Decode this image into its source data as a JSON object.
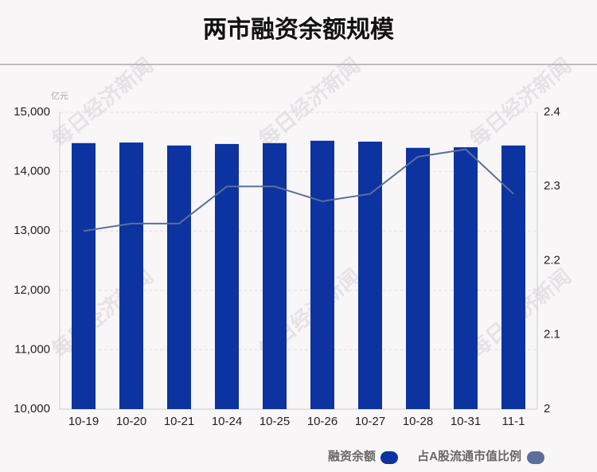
{
  "chart_data": {
    "type": "bar_line",
    "title": "两市融资余额规模",
    "y_unit": "亿元",
    "watermark": "每日经济新闻",
    "categories": [
      "10-19",
      "10-20",
      "10-21",
      "10-24",
      "10-25",
      "10-26",
      "10-27",
      "10-28",
      "10-31",
      "11-1"
    ],
    "series": [
      {
        "name": "融资余额",
        "color": "#0c33a0",
        "type": "bar",
        "values": [
          14480,
          14490,
          14440,
          14465,
          14480,
          14520,
          14505,
          14400,
          14410,
          14440
        ]
      },
      {
        "name": "占A股流通市值比例",
        "color": "#5b6f9c",
        "type": "line",
        "axis": "y2",
        "values": [
          2.24,
          2.25,
          2.25,
          2.3,
          2.3,
          2.28,
          2.29,
          2.34,
          2.35,
          2.29
        ]
      }
    ],
    "ylim": [
      10000,
      15000
    ],
    "yticks": [
      {
        "value": 10000,
        "label": "10,000"
      },
      {
        "value": 11000,
        "label": "11,000"
      },
      {
        "value": 12000,
        "label": "12,000"
      },
      {
        "value": 13000,
        "label": "13,000"
      },
      {
        "value": 14000,
        "label": "14,000"
      },
      {
        "value": 15000,
        "label": "15,000"
      }
    ],
    "y2lim": [
      2,
      2.4
    ],
    "y2ticks": [
      2,
      2.1,
      2.2,
      2.3,
      2.4
    ],
    "grid": true
  }
}
